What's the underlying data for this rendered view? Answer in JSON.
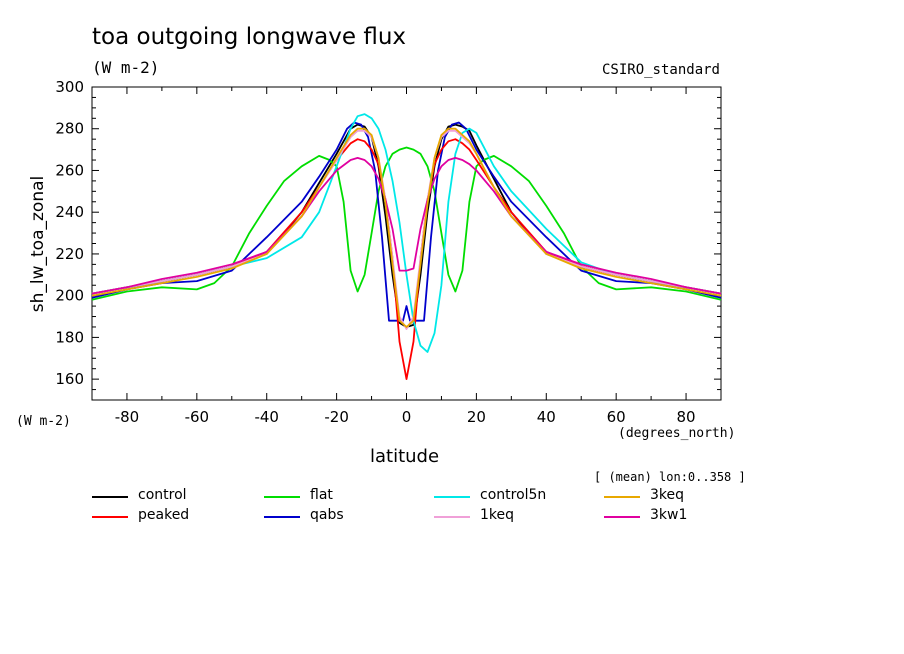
{
  "chart_data": {
    "type": "line",
    "title": "toa outgoing longwave flux",
    "units": "(W m-2)",
    "dataset": "CSIRO_standard",
    "ylabel": "sh_lw_toa_zonal",
    "y_units": "(W m-2)",
    "xlabel": "latitude",
    "x_units": "(degrees_north)",
    "subset": "[ (mean) lon:0..358 ]",
    "xlim": [
      -90,
      90
    ],
    "ylim": [
      150,
      300
    ],
    "x_ticks": [
      -80,
      -60,
      -40,
      -20,
      0,
      20,
      40,
      60,
      80
    ],
    "y_ticks": [
      160,
      180,
      200,
      220,
      240,
      260,
      280,
      300
    ],
    "grid": false,
    "legend_placement": "bottom",
    "series": [
      {
        "name": "control",
        "color": "#000000",
        "x": [
          -90,
          -80,
          -70,
          -60,
          -50,
          -40,
          -30,
          -25,
          -20,
          -16,
          -14,
          -12,
          -10,
          -8,
          -6,
          -4,
          -2,
          0,
          2,
          4,
          6,
          8,
          10,
          12,
          14,
          16,
          18,
          20,
          25,
          30,
          40,
          50,
          60,
          70,
          80,
          90
        ],
        "y": [
          201,
          204,
          207,
          210,
          214,
          220,
          240,
          254,
          268,
          280,
          282,
          281,
          276,
          262,
          238,
          210,
          187,
          185,
          186,
          210,
          240,
          262,
          275,
          281,
          282,
          281,
          279,
          272,
          256,
          240,
          220,
          214,
          210,
          207,
          204,
          201
        ]
      },
      {
        "name": "peaked",
        "color": "#ff0000",
        "x": [
          -90,
          -80,
          -70,
          -60,
          -50,
          -40,
          -30,
          -25,
          -20,
          -16,
          -14,
          -12,
          -10,
          -8,
          -6,
          -4,
          -2,
          0,
          2,
          4,
          6,
          8,
          10,
          12,
          14,
          16,
          18,
          20,
          25,
          30,
          40,
          50,
          60,
          70,
          80,
          90
        ],
        "y": [
          201,
          204,
          207,
          210,
          214,
          221,
          240,
          252,
          265,
          273,
          275,
          274,
          270,
          263,
          246,
          218,
          178,
          160,
          178,
          218,
          246,
          263,
          270,
          274,
          275,
          273,
          270,
          265,
          252,
          240,
          221,
          214,
          210,
          207,
          204,
          201
        ]
      },
      {
        "name": "flat",
        "color": "#00dd00",
        "x": [
          -90,
          -80,
          -70,
          -60,
          -55,
          -50,
          -45,
          -40,
          -35,
          -30,
          -25,
          -22,
          -20,
          -18,
          -16,
          -14,
          -12,
          -10,
          -8,
          -6,
          -4,
          -2,
          0,
          2,
          4,
          6,
          8,
          10,
          12,
          14,
          16,
          18,
          20,
          22,
          25,
          30,
          35,
          40,
          45,
          50,
          55,
          60,
          70,
          80,
          90
        ],
        "y": [
          198,
          202,
          204,
          203,
          206,
          214,
          230,
          243,
          255,
          262,
          267,
          265,
          262,
          245,
          212,
          202,
          210,
          230,
          250,
          262,
          268,
          270,
          271,
          270,
          268,
          262,
          250,
          230,
          210,
          202,
          212,
          245,
          262,
          265,
          267,
          262,
          255,
          243,
          230,
          214,
          206,
          203,
          204,
          202,
          198
        ]
      },
      {
        "name": "qabs",
        "color": "#0000cc",
        "x": [
          -90,
          -80,
          -70,
          -60,
          -50,
          -40,
          -30,
          -25,
          -20,
          -17,
          -15,
          -13,
          -11,
          -9,
          -7,
          -5,
          -3,
          -1,
          0,
          1,
          3,
          5,
          7,
          9,
          11,
          13,
          15,
          17,
          20,
          25,
          30,
          40,
          50,
          60,
          70,
          80,
          90
        ],
        "y": [
          199,
          203,
          206,
          207,
          212,
          228,
          245,
          257,
          270,
          280,
          283,
          282,
          276,
          260,
          228,
          188,
          188,
          188,
          195,
          188,
          188,
          188,
          228,
          260,
          276,
          282,
          283,
          280,
          270,
          257,
          245,
          228,
          212,
          207,
          206,
          203,
          199
        ]
      },
      {
        "name": "control5n",
        "color": "#00e8e8",
        "x": [
          -90,
          -80,
          -70,
          -60,
          -50,
          -40,
          -30,
          -25,
          -20,
          -16,
          -14,
          -12,
          -10,
          -8,
          -6,
          -4,
          -2,
          0,
          2,
          4,
          6,
          8,
          10,
          12,
          14,
          16,
          18,
          20,
          25,
          30,
          40,
          50,
          60,
          70,
          80,
          90
        ],
        "y": [
          201,
          204,
          207,
          210,
          214,
          218,
          228,
          240,
          262,
          280,
          286,
          287,
          285,
          280,
          270,
          255,
          235,
          210,
          188,
          176,
          173,
          182,
          205,
          245,
          268,
          278,
          280,
          278,
          262,
          250,
          232,
          216,
          210,
          207,
          204,
          201
        ]
      },
      {
        "name": "1keq",
        "color": "#f0a0d8",
        "x": [
          -90,
          -80,
          -70,
          -60,
          -50,
          -40,
          -30,
          -25,
          -20,
          -16,
          -14,
          -12,
          -10,
          -8,
          -6,
          -4,
          -2,
          0,
          2,
          4,
          6,
          8,
          10,
          12,
          14,
          16,
          18,
          20,
          25,
          30,
          40,
          50,
          60,
          70,
          80,
          90
        ],
        "y": [
          201,
          204,
          207,
          210,
          214,
          220,
          238,
          252,
          265,
          276,
          279,
          279,
          276,
          266,
          246,
          218,
          190,
          184,
          190,
          218,
          246,
          266,
          276,
          279,
          279,
          276,
          273,
          268,
          252,
          238,
          220,
          214,
          210,
          207,
          204,
          201
        ]
      },
      {
        "name": "3keq",
        "color": "#e8a800",
        "x": [
          -90,
          -80,
          -70,
          -60,
          -50,
          -40,
          -30,
          -25,
          -20,
          -16,
          -14,
          -12,
          -10,
          -8,
          -6,
          -4,
          -2,
          0,
          2,
          4,
          6,
          8,
          10,
          12,
          14,
          16,
          18,
          20,
          25,
          30,
          40,
          50,
          60,
          70,
          80,
          90
        ],
        "y": [
          200,
          203,
          206,
          209,
          213,
          220,
          238,
          252,
          266,
          277,
          280,
          280,
          277,
          266,
          244,
          215,
          188,
          185,
          188,
          215,
          244,
          266,
          277,
          280,
          280,
          277,
          274,
          268,
          252,
          238,
          220,
          213,
          209,
          206,
          203,
          200
        ]
      },
      {
        "name": "3kw1",
        "color": "#e000a0",
        "x": [
          -90,
          -80,
          -70,
          -60,
          -50,
          -40,
          -30,
          -25,
          -20,
          -16,
          -14,
          -12,
          -10,
          -8,
          -6,
          -4,
          -2,
          0,
          2,
          4,
          6,
          8,
          10,
          12,
          14,
          16,
          18,
          20,
          25,
          30,
          40,
          50,
          60,
          70,
          80,
          90
        ],
        "y": [
          201,
          204,
          208,
          211,
          215,
          221,
          238,
          250,
          260,
          265,
          266,
          265,
          262,
          256,
          246,
          232,
          212,
          212,
          213,
          232,
          246,
          256,
          262,
          265,
          266,
          265,
          263,
          260,
          250,
          238,
          221,
          215,
          211,
          208,
          204,
          201
        ]
      }
    ]
  }
}
